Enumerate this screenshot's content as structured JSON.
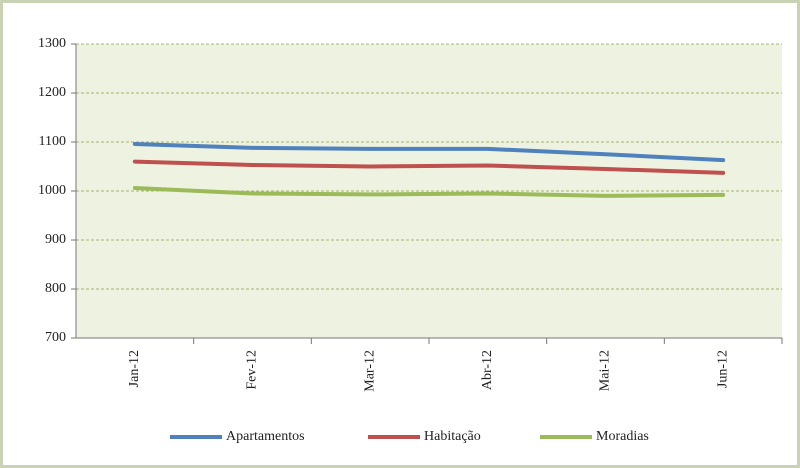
{
  "chart_data": {
    "type": "line",
    "categories": [
      "Jan-12",
      "Fev-12",
      "Mar-12",
      "Abr-12",
      "Mai-12",
      "Jun-12"
    ],
    "series": [
      {
        "name": "Apartamentos",
        "color": "#4f81bd",
        "values": [
          1096,
          1088,
          1086,
          1086,
          1075,
          1063
        ]
      },
      {
        "name": "Habitação",
        "color": "#c0504d",
        "values": [
          1060,
          1053,
          1050,
          1052,
          1045,
          1037
        ]
      },
      {
        "name": "Moradias",
        "color": "#9bbb59",
        "values": [
          1006,
          995,
          993,
          995,
          990,
          992
        ]
      }
    ],
    "ylim": [
      700,
      1300
    ],
    "yticks": [
      700,
      800,
      900,
      1000,
      1100,
      1200,
      1300
    ],
    "grid": true
  }
}
